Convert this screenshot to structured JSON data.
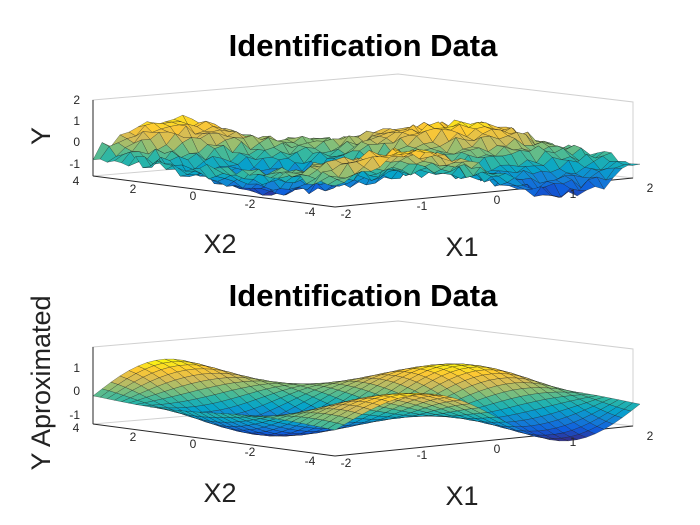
{
  "chart_data": [
    {
      "type": "surface",
      "title": "Identification Data",
      "xlabel": "X1",
      "ylabel": "X2",
      "zlabel": "Y",
      "xlim": [
        -2,
        2
      ],
      "ylim": [
        -4,
        4
      ],
      "zlim": [
        -1,
        2
      ],
      "x_ticks": [
        "-2",
        "-1",
        "0",
        "1",
        "2"
      ],
      "y_ticks": [
        "4",
        "2",
        "0",
        "-2",
        "-4"
      ],
      "z_ticks": [
        "2",
        "1",
        "0",
        "-1"
      ],
      "surface": "noisy",
      "colormap": [
        "#352a87",
        "#0f5cdd",
        "#1481d6",
        "#06a4ca",
        "#2eb7a4",
        "#87bf77",
        "#d1bb59",
        "#fec832",
        "#f9fb0e"
      ]
    },
    {
      "type": "surface",
      "title": "Identification Data",
      "xlabel": "X1",
      "ylabel": "X2",
      "zlabel": "Y Aproximated",
      "xlim": [
        -2,
        2
      ],
      "ylim": [
        -4,
        4
      ],
      "zlim": [
        -1,
        1.7
      ],
      "x_ticks": [
        "-2",
        "-1",
        "0",
        "1",
        "2"
      ],
      "y_ticks": [
        "4",
        "2",
        "0",
        "-2",
        "-4"
      ],
      "z_ticks": [
        "1",
        "0",
        "-1"
      ],
      "surface": "smooth",
      "colormap": [
        "#352a87",
        "#0f5cdd",
        "#1481d6",
        "#06a4ca",
        "#2eb7a4",
        "#87bf77",
        "#d1bb59",
        "#fec832",
        "#f9fb0e"
      ]
    }
  ]
}
